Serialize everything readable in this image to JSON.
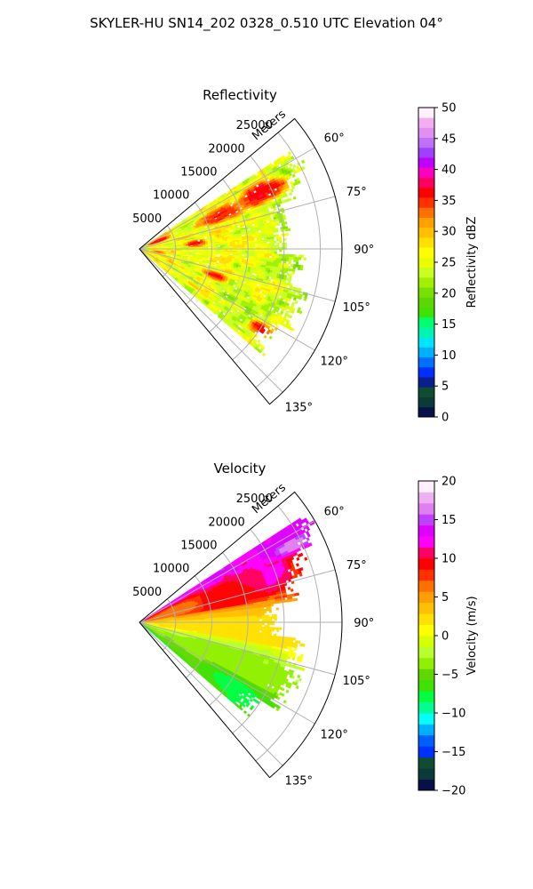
{
  "figure": {
    "title": "SKYLER-HU  SN14_202  0328_0.510 UTC Elevation 04°"
  },
  "chart_data": [
    {
      "type": "heatmap",
      "projection": "polar-sector",
      "title": "Reflectivity",
      "range_axis_label": "Meters",
      "range_ticks": [
        5000,
        10000,
        15000,
        20000,
        25000
      ],
      "range_tick_labels": [
        "5000",
        "10000",
        "15000",
        "20000",
        "25000"
      ],
      "range_max": 28000,
      "azimuth_range_deg": [
        50,
        140
      ],
      "azimuth_ticks_deg": [
        60,
        75,
        90,
        105,
        120,
        135
      ],
      "azimuth_tick_labels": [
        "60°",
        "75°",
        "90°",
        "105°",
        "120°",
        "135°"
      ],
      "data_sector_deg": [
        57,
        130
      ],
      "grid": true,
      "colorbar": {
        "label": "Reflectivity dBZ",
        "vmin": 0,
        "vmax": 50,
        "ticks": [
          0,
          5,
          10,
          15,
          20,
          25,
          30,
          35,
          40,
          45,
          50
        ],
        "tick_labels": [
          "0",
          "5",
          "10",
          "15",
          "20",
          "25",
          "30",
          "35",
          "40",
          "45",
          "50"
        ],
        "colors": [
          "#08104a",
          "#0c3a3a",
          "#0f4d33",
          "#0a1f8c",
          "#0030ff",
          "#0070ff",
          "#00b0ff",
          "#00e5ff",
          "#00f5b0",
          "#00ff70",
          "#40e000",
          "#5ad800",
          "#7ae000",
          "#a0f000",
          "#c8ff20",
          "#e8ff00",
          "#ffff00",
          "#ffe000",
          "#ffc000",
          "#ffa000",
          "#ff7000",
          "#ff3000",
          "#ff0000",
          "#ff0060",
          "#ff00c0",
          "#c000ff",
          "#a040ff",
          "#c070ff",
          "#e090f0",
          "#f0b0f0",
          "#fff0ff"
        ]
      },
      "fields": [
        {
          "value": 38,
          "range_m": [
            1000,
            4500
          ],
          "az_deg": [
            62,
            72
          ]
        },
        {
          "value": 36,
          "range_m": [
            8000,
            16000
          ],
          "az_deg": [
            62,
            72
          ]
        },
        {
          "value": 38,
          "range_m": [
            15000,
            21000
          ],
          "az_deg": [
            60,
            70
          ]
        },
        {
          "value": 36,
          "range_m": [
            17000,
            23000
          ],
          "az_deg": [
            62,
            68
          ]
        },
        {
          "value": 37,
          "range_m": [
            6000,
            9000
          ],
          "az_deg": [
            80,
            88
          ]
        },
        {
          "value": 36,
          "range_m": [
            9000,
            13000
          ],
          "az_deg": [
            106,
            112
          ]
        },
        {
          "value": 37,
          "range_m": [
            18000,
            21500
          ],
          "az_deg": [
            120,
            126
          ]
        },
        {
          "value": 33,
          "range_m": [
            1500,
            3500
          ],
          "az_deg": [
            94,
            104
          ]
        }
      ]
    },
    {
      "type": "heatmap",
      "projection": "polar-sector",
      "title": "Velocity",
      "range_axis_label": "Meters",
      "range_ticks": [
        5000,
        10000,
        15000,
        20000,
        25000
      ],
      "range_tick_labels": [
        "5000",
        "10000",
        "15000",
        "20000",
        "25000"
      ],
      "range_max": 28000,
      "azimuth_range_deg": [
        50,
        140
      ],
      "azimuth_ticks_deg": [
        60,
        75,
        90,
        105,
        120,
        135
      ],
      "azimuth_tick_labels": [
        "60°",
        "75°",
        "90°",
        "105°",
        "120°",
        "135°"
      ],
      "data_sector_deg": [
        57,
        130
      ],
      "grid": true,
      "colorbar": {
        "label": "Velocity (m/s)",
        "vmin": -20,
        "vmax": 20,
        "ticks": [
          -20,
          -15,
          -10,
          -5,
          0,
          5,
          10,
          15,
          20
        ],
        "tick_labels": [
          "−20",
          "−15",
          "−10",
          "−5",
          "0",
          "5",
          "10",
          "15",
          "20"
        ],
        "colors": [
          "#08104a",
          "#0c3a3a",
          "#0f4d33",
          "#0030ff",
          "#0060ff",
          "#00b0ff",
          "#00ffff",
          "#00ff90",
          "#00ff40",
          "#40e000",
          "#60d800",
          "#90f000",
          "#b8ff30",
          "#d8ff00",
          "#ffff00",
          "#ffe000",
          "#ffc000",
          "#ffa000",
          "#ff7000",
          "#ff3000",
          "#ff0000",
          "#ff0060",
          "#ff00ff",
          "#e000ff",
          "#c040ff",
          "#e080f0",
          "#f0b0f0",
          "#fff0ff"
        ]
      },
      "fields": [
        {
          "value": 14,
          "range_m": [
            19000,
            27500
          ],
          "az_deg": [
            57,
            66
          ]
        },
        {
          "value": 17,
          "range_m": [
            21000,
            26000
          ],
          "az_deg": [
            61,
            65
          ]
        },
        {
          "value": 12,
          "range_m": [
            12000,
            22000
          ],
          "az_deg": [
            63,
            78
          ]
        },
        {
          "value": 9,
          "range_m": [
            4500,
            18000
          ],
          "az_deg": [
            63,
            90
          ]
        },
        {
          "value": 6,
          "range_m": [
            1000,
            9000
          ],
          "az_deg": [
            62,
            80
          ]
        },
        {
          "value": 2,
          "range_m": [
            0,
            24000
          ],
          "az_deg": [
            80,
            104
          ]
        },
        {
          "value": -4,
          "range_m": [
            2000,
            24000
          ],
          "az_deg": [
            100,
            130
          ]
        },
        {
          "value": -8,
          "range_m": [
            10000,
            22000
          ],
          "az_deg": [
            118,
            130
          ]
        }
      ]
    }
  ]
}
